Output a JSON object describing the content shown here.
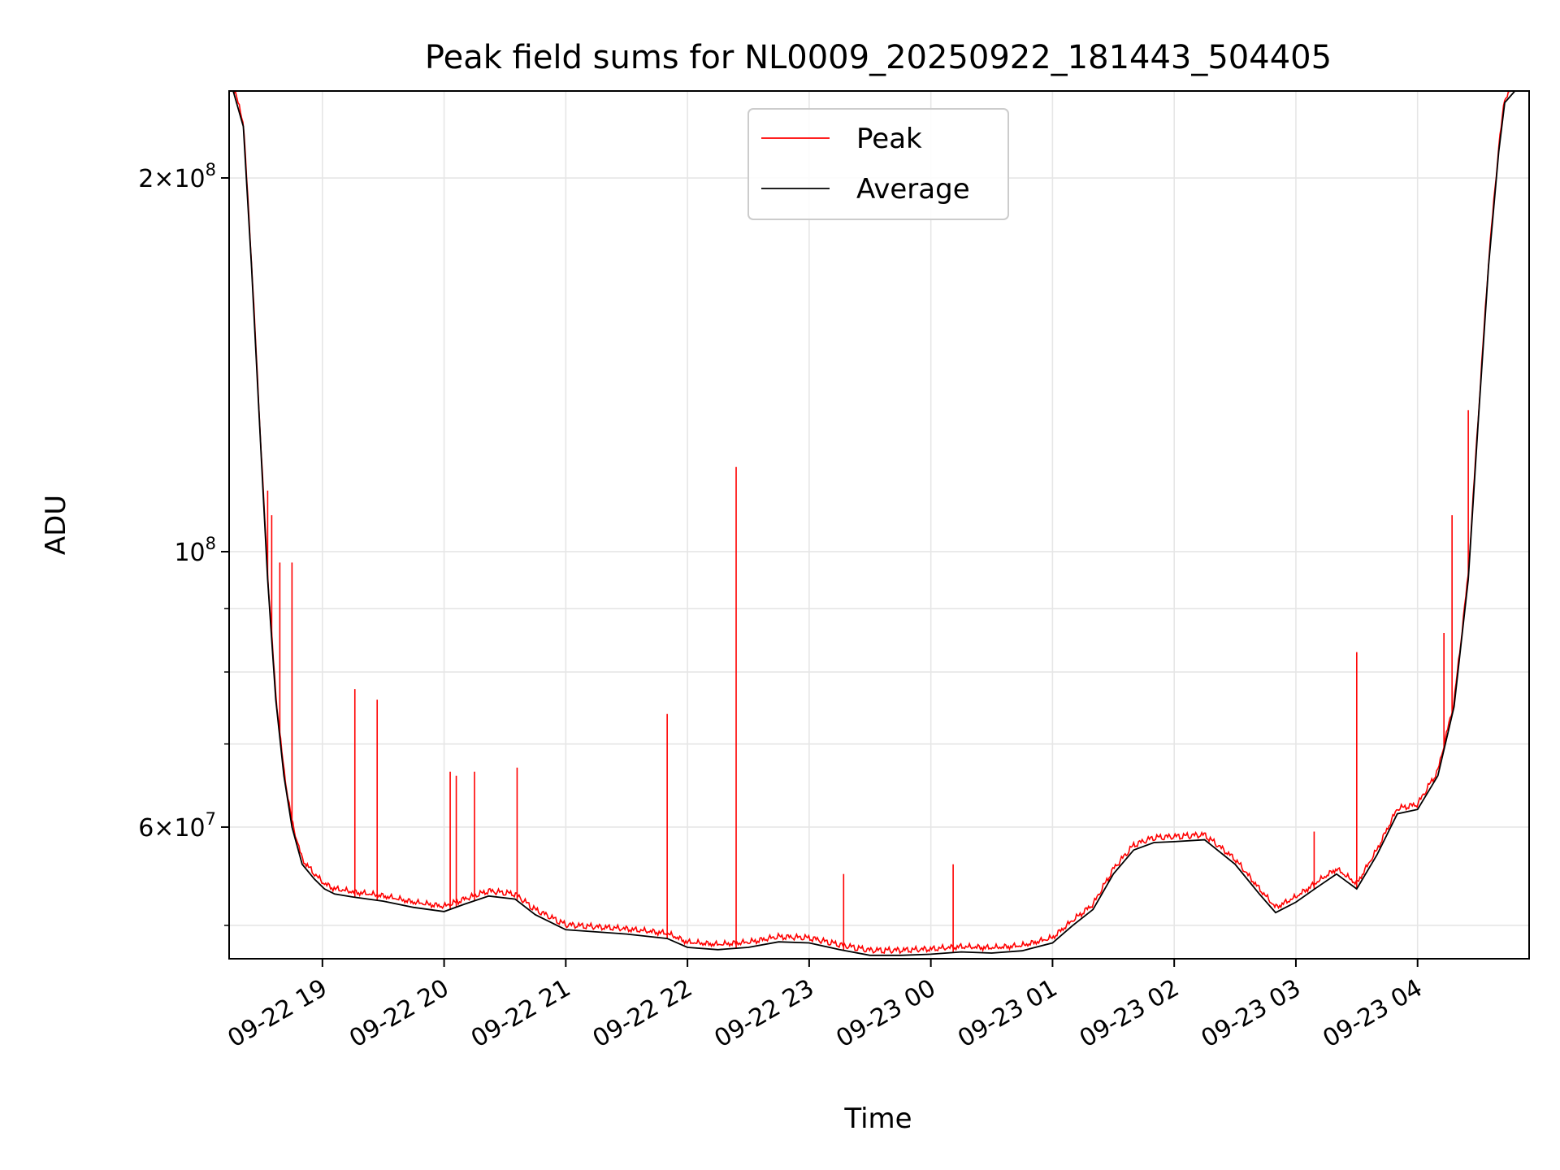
{
  "chart_data": {
    "type": "line",
    "title": "Peak field sums for NL0009_20250922_181443_504405",
    "xlabel": "Time",
    "ylabel": "ADU",
    "yscale": "log",
    "xlim": [
      "09-22 18:14",
      "09-23 04:55"
    ],
    "ylim": [
      47000000,
      235000000
    ],
    "grid": true,
    "legend_position": "top-center",
    "x_ticks": [
      "09-22 19",
      "09-22 20",
      "09-22 21",
      "09-22 22",
      "09-22 23",
      "09-23 00",
      "09-23 01",
      "09-23 02",
      "09-23 03",
      "09-23 04"
    ],
    "y_ticks": [
      {
        "value": 60000000,
        "base": "6",
        "exp": "7"
      },
      {
        "value": 100000000,
        "base": "",
        "exp": "8"
      },
      {
        "value": 200000000,
        "base": "2",
        "exp": "8"
      }
    ],
    "y_minor_ticks": [
      50000000,
      70000000,
      80000000,
      90000000
    ],
    "x": [
      "09-22 18:16",
      "09-22 18:21",
      "09-22 18:25",
      "09-22 18:30",
      "09-22 18:33",
      "09-22 18:37",
      "09-22 18:41",
      "09-22 18:45",
      "09-22 18:50",
      "09-22 18:56",
      "09-22 19:01",
      "09-22 19:06",
      "09-22 19:15",
      "09-22 19:30",
      "09-22 19:45",
      "09-22 20:00",
      "09-22 20:10",
      "09-22 20:22",
      "09-22 20:35",
      "09-22 20:45",
      "09-22 21:00",
      "09-22 21:30",
      "09-22 21:50",
      "09-22 22:00",
      "09-22 22:15",
      "09-22 22:30",
      "09-22 22:45",
      "09-22 23:00",
      "09-22 23:15",
      "09-22 23:30",
      "09-22 23:45",
      "09-23 00:00",
      "09-23 00:15",
      "09-23 00:30",
      "09-23 00:45",
      "09-23 01:00",
      "09-23 01:10",
      "09-23 01:20",
      "09-23 01:30",
      "09-23 01:40",
      "09-23 01:50",
      "09-23 02:00",
      "09-23 02:15",
      "09-23 02:30",
      "09-23 02:42",
      "09-23 02:50",
      "09-23 03:00",
      "09-23 03:10",
      "09-23 03:20",
      "09-23 03:30",
      "09-23 03:40",
      "09-23 03:50",
      "09-23 04:00",
      "09-23 04:10",
      "09-23 04:18",
      "09-23 04:25",
      "09-23 04:30",
      "09-23 04:35",
      "09-23 04:40",
      "09-23 04:43",
      "09-23 04:48",
      "09-23 04:53"
    ],
    "series": [
      {
        "name": "Average",
        "color": "#000000",
        "values": [
          235000000,
          220000000,
          170000000,
          118000000,
          95000000,
          76000000,
          66000000,
          60000000,
          56000000,
          54500000,
          53500000,
          53000000,
          52700000,
          52300000,
          51700000,
          51300000,
          52000000,
          52800000,
          52500000,
          51000000,
          49600000,
          49200000,
          48800000,
          48000000,
          47800000,
          48000000,
          48500000,
          48400000,
          47800000,
          47300000,
          47300000,
          47400000,
          47600000,
          47500000,
          47700000,
          48400000,
          50000000,
          51500000,
          55000000,
          57500000,
          58300000,
          58400000,
          58600000,
          56000000,
          53000000,
          51200000,
          52200000,
          53600000,
          55000000,
          53500000,
          57000000,
          61500000,
          62000000,
          66000000,
          75000000,
          95000000,
          128000000,
          170000000,
          210000000,
          230000000,
          235000000,
          235000000
        ]
      },
      {
        "name": "Peak",
        "color": "#ff0000",
        "spikes": [
          {
            "x": "09-22 18:33",
            "value": 112000000
          },
          {
            "x": "09-22 18:35",
            "value": 107000000
          },
          {
            "x": "09-22 18:39",
            "value": 98000000
          },
          {
            "x": "09-22 18:45",
            "value": 98000000
          },
          {
            "x": "09-22 19:16",
            "value": 77500000
          },
          {
            "x": "09-22 19:27",
            "value": 76000000
          },
          {
            "x": "09-22 20:03",
            "value": 66500000
          },
          {
            "x": "09-22 20:06",
            "value": 66000000
          },
          {
            "x": "09-22 20:15",
            "value": 66500000
          },
          {
            "x": "09-22 20:36",
            "value": 67000000
          },
          {
            "x": "09-22 21:50",
            "value": 74000000
          },
          {
            "x": "09-22 22:24",
            "value": 117000000
          },
          {
            "x": "09-22 23:17",
            "value": 55000000
          },
          {
            "x": "09-23 00:11",
            "value": 56000000
          },
          {
            "x": "09-23 03:09",
            "value": 59500000
          },
          {
            "x": "09-23 03:30",
            "value": 83000000
          },
          {
            "x": "09-23 04:13",
            "value": 86000000
          },
          {
            "x": "09-23 04:17",
            "value": 107000000
          },
          {
            "x": "09-23 04:25",
            "value": 130000000
          }
        ]
      }
    ]
  }
}
